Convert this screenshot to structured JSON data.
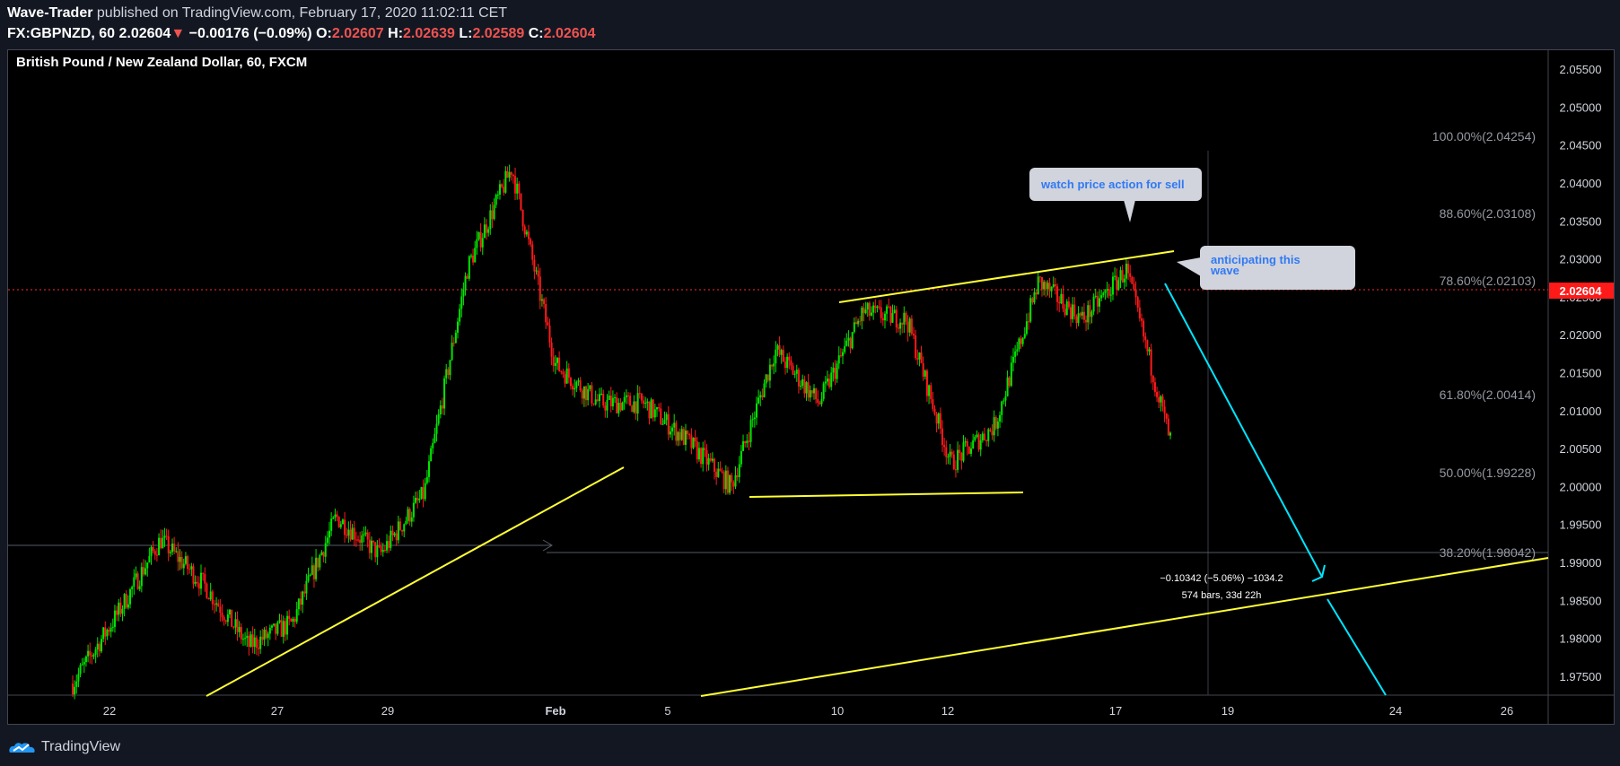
{
  "header": {
    "author": "Wave-Trader",
    "published_text": "published on TradingView.com, February 17, 2020 11:02:11 CET",
    "symbol": "FX:GBPNZD, 60",
    "last": "2.02604",
    "change_arrow": "▼",
    "change": "−0.00176 (−0.09%)",
    "o_label": "O:",
    "o": "2.02607",
    "h_label": "H:",
    "h": "2.02639",
    "l_label": "L:",
    "l": "2.02589",
    "c_label": "C:",
    "c": "2.02604"
  },
  "chart": {
    "title": "British Pound / New Zealand Dollar, 60, FXCM",
    "current_price": "2.02604",
    "price_axis": [
      "2.05500",
      "2.05000",
      "2.04500",
      "2.04000",
      "2.03500",
      "2.03000",
      "2.02500",
      "2.02000",
      "2.01500",
      "2.01000",
      "2.00500",
      "2.00000",
      "1.99500",
      "1.99000",
      "1.98500",
      "1.98000",
      "1.97500"
    ],
    "time_axis": [
      "22",
      "27",
      "29",
      "Feb",
      "5",
      "10",
      "12",
      "17",
      "19",
      "24",
      "26"
    ],
    "fib_levels": [
      {
        "label": "100.00%(2.04254)"
      },
      {
        "label": "88.60%(2.03108)"
      },
      {
        "label": "78.60%(2.02103)"
      },
      {
        "label": "61.80%(2.00414)"
      },
      {
        "label": "50.00%(1.99228)"
      },
      {
        "label": "38.20%(1.98042)"
      }
    ],
    "callouts": {
      "sell": "watch price action for sell",
      "wave_line1": "anticipating this",
      "wave_line2": "wave"
    },
    "measure": {
      "line1": "−0.10342 (−5.06%) −1034.2",
      "line2": "574 bars, 33d 22h"
    },
    "colors": {
      "up": "#00e600",
      "down": "#ff1a1a",
      "trendline": "#ffff33",
      "projection": "#00e5ff",
      "price_line": "#ff2a2a",
      "callout_text": "#3179f5",
      "callout_bg": "#d1d4dc"
    }
  },
  "chart_data": {
    "type": "candlestick",
    "title": "British Pound / New Zealand Dollar, 60, FXCM",
    "ylim": [
      1.9725,
      2.0575
    ],
    "y_ticks": [
      2.055,
      2.05,
      2.045,
      2.04,
      2.035,
      2.03,
      2.025,
      2.02,
      2.015,
      2.01,
      2.005,
      2.0,
      1.995,
      1.99,
      1.985,
      1.98,
      1.975
    ],
    "x_ticks": [
      "22",
      "27",
      "29",
      "Feb",
      "5",
      "10",
      "12",
      "17",
      "19",
      "24",
      "26"
    ],
    "last_close": 2.02604,
    "approx_path": [
      [
        "Jan 21",
        1.974
      ],
      [
        "Jan 22",
        1.983
      ],
      [
        "Jan 23",
        1.993
      ],
      [
        "Jan 24",
        1.987
      ],
      [
        "Jan 26",
        1.979
      ],
      [
        "Jan 27",
        1.982
      ],
      [
        "Jan 28",
        1.996
      ],
      [
        "Jan 29",
        1.991
      ],
      [
        "Jan 30",
        1.999
      ],
      [
        "Jan 31",
        2.029
      ],
      [
        "Feb 1",
        2.042
      ],
      [
        "Feb 2",
        2.016
      ],
      [
        "Feb 3",
        2.011
      ],
      [
        "Feb 4",
        2.011
      ],
      [
        "Feb 6",
        2.006
      ],
      [
        "Feb 7",
        2.0
      ],
      [
        "Feb 9",
        2.018
      ],
      [
        "Feb 10",
        2.011
      ],
      [
        "Feb 11",
        2.023
      ],
      [
        "Feb 12",
        2.022
      ],
      [
        "Feb 13",
        2.003
      ],
      [
        "Feb 14",
        2.008
      ],
      [
        "Feb 15",
        2.027
      ],
      [
        "Feb 16",
        2.022
      ],
      [
        "Feb 17",
        2.0285
      ],
      [
        "Feb 18",
        2.006
      ]
    ],
    "fibonacci": [
      {
        "ratio": "100.00%",
        "price": 2.04254
      },
      {
        "ratio": "88.60%",
        "price": 2.03108
      },
      {
        "ratio": "78.60%",
        "price": 2.02103
      },
      {
        "ratio": "61.80%",
        "price": 2.00414
      },
      {
        "ratio": "50.00%",
        "price": 1.99228
      },
      {
        "ratio": "38.20%",
        "price": 1.98042
      }
    ]
  },
  "footer": {
    "brand": "TradingView"
  }
}
